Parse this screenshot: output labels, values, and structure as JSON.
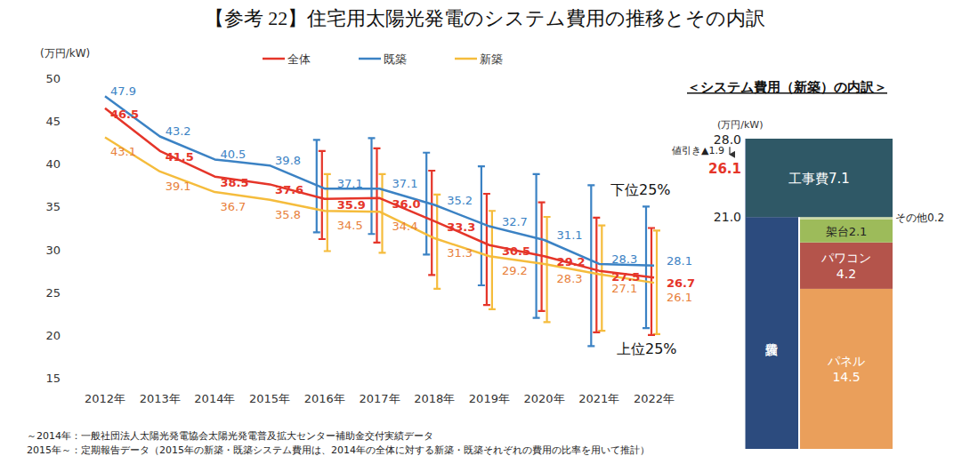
{
  "title": "【参考 22】住宅用太陽光発電のシステム費用の推移とその内訳",
  "footnotes": [
    "～2014年：一般社団法人太陽光発電協会太陽光発電普及拡大センター補助金交付実績データ",
    "2015年～：定期報告データ（2015年の新築・既築システム費用は、2014年の全体に対する新築・既築それぞれの費用の比率を用いて推計）"
  ],
  "chart_data": [
    {
      "type": "line",
      "y_label": "(万円/kW)",
      "categories": [
        "2012年",
        "2013年",
        "2014年",
        "2015年",
        "2016年",
        "2017年",
        "2018年",
        "2019年",
        "2020年",
        "2021年",
        "2022年"
      ],
      "ylim": [
        15,
        50
      ],
      "yticks": [
        15,
        20,
        25,
        30,
        35,
        40,
        45,
        50
      ],
      "grid": false,
      "legend": "top",
      "data_labels": true,
      "annotations": [
        "下位25%",
        "上位25%"
      ],
      "series": [
        {
          "name": "全体",
          "color": "#e53529",
          "values": [
            46.5,
            41.5,
            38.5,
            37.6,
            35.9,
            36.0,
            33.3,
            30.5,
            29.2,
            27.5,
            26.7
          ],
          "value_labels": [
            "46.5",
            "41.5",
            "38.5",
            "37.6",
            "35.9",
            "36.0",
            "33.3",
            "30.5",
            "29.2",
            "27.5",
            "26.7"
          ],
          "range_high": [
            null,
            null,
            null,
            null,
            41.5,
            41.8,
            39.2,
            36.5,
            35.5,
            33.7,
            32.5
          ],
          "range_low": [
            null,
            null,
            null,
            null,
            31.2,
            30.8,
            27.0,
            23.5,
            22.8,
            20.3,
            20.0
          ]
        },
        {
          "name": "既築",
          "color": "#3b82c4",
          "values": [
            47.9,
            43.2,
            40.5,
            39.8,
            37.1,
            37.1,
            35.2,
            32.7,
            31.1,
            28.3,
            28.1
          ],
          "value_labels": [
            "47.9",
            "43.2",
            "40.5",
            "39.8",
            "37.1",
            "37.1",
            "35.2",
            "32.7",
            "31.1",
            "28.3",
            "28.1"
          ],
          "range_high": [
            null,
            null,
            null,
            null,
            42.8,
            43.0,
            41.3,
            39.7,
            38.8,
            37.5,
            35.0
          ],
          "range_low": [
            null,
            null,
            null,
            null,
            32.0,
            31.8,
            29.4,
            25.8,
            22.0,
            18.7,
            20.8
          ]
        },
        {
          "name": "新築",
          "color": "#f5bc3c",
          "values": [
            43.1,
            39.1,
            36.7,
            35.8,
            34.5,
            34.4,
            31.3,
            29.2,
            28.3,
            27.1,
            26.1
          ],
          "value_labels": [
            "43.1",
            "39.1",
            "36.7",
            "35.8",
            "34.5",
            "34.4",
            "31.3",
            "29.2",
            "28.3",
            "27.1",
            "26.1"
          ],
          "range_high": [
            null,
            null,
            null,
            null,
            38.8,
            38.8,
            36.4,
            34.5,
            33.8,
            32.8,
            32.2
          ],
          "range_low": [
            null,
            null,
            null,
            null,
            29.8,
            29.6,
            25.4,
            23.0,
            21.5,
            20.5,
            20.1
          ]
        }
      ]
    },
    {
      "type": "stacked_bar",
      "title": "＜システム費用（新築）の内訳＞",
      "y_label": "(万円/kW)",
      "stacked": true,
      "tick_labels": "y",
      "ylim": [
        0,
        28.1
      ],
      "yticks": [
        {
          "value": 21,
          "label": "21.0"
        },
        {
          "value": 28,
          "label": "28.0"
        }
      ],
      "group": {
        "name": "設備費",
        "value": 21.0,
        "color": "#2c4b7e"
      },
      "series": [
        {
          "name": "パネル",
          "color": "#ea9f5b",
          "values": [
            14.5
          ]
        },
        {
          "name": "パワコン",
          "color": "#b4544b",
          "values": [
            4.2
          ]
        },
        {
          "name": "架台",
          "color": "#9dbb5a",
          "values": [
            2.1
          ]
        },
        {
          "name": "その他",
          "color": "#c9d9a6",
          "values": [
            0.2
          ]
        }
      ],
      "top": {
        "name": "工事費",
        "value": 7.1,
        "color": "#2f5866"
      },
      "discount": {
        "label": "値引き▲",
        "value": 1.9
      },
      "net": 26.1
    }
  ]
}
